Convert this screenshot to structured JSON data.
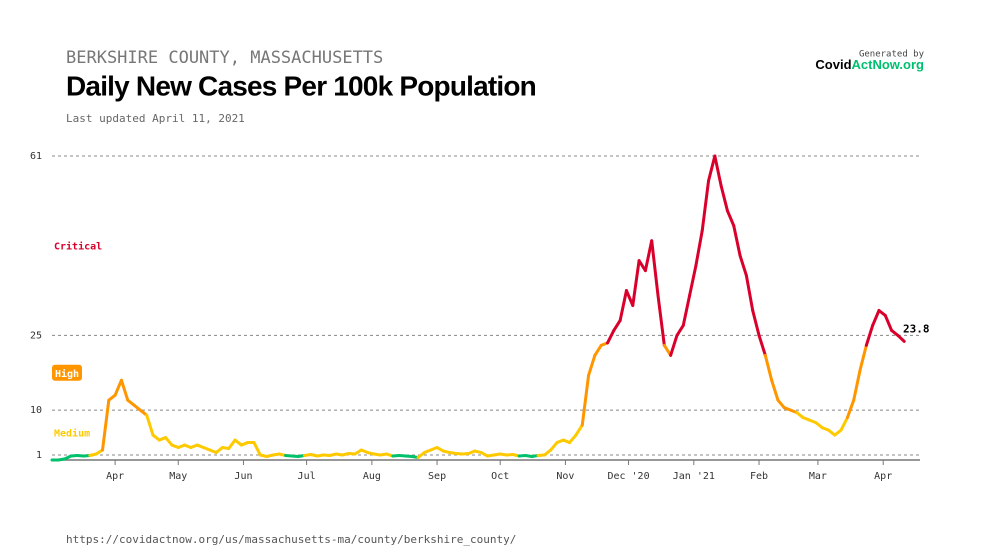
{
  "chart_data": {
    "type": "line",
    "region": "BERKSHIRE COUNTY, MASSACHUSETTS",
    "title": "Daily New Cases Per 100k Population",
    "subtitle": "Last updated April 11, 2021",
    "credit": {
      "prefix": "Generated by",
      "brand": [
        "Covid",
        "ActNow.org"
      ],
      "brand_colors": [
        "#000000",
        "#00bf6f"
      ]
    },
    "source": "https://covidactnow.org/us/massachusetts-ma/county/berkshire_county/",
    "values": [
      0,
      0,
      0.2,
      0.8,
      0.9,
      0.8,
      0.9,
      1.2,
      2,
      12,
      13,
      16,
      12,
      11,
      10,
      9,
      5,
      4,
      4.5,
      3,
      2.5,
      3,
      2.5,
      3,
      2.5,
      2,
      1.5,
      2.5,
      2.3,
      4,
      3,
      3.5,
      3.5,
      1,
      0.7,
      1,
      1.2,
      0.9,
      0.8,
      0.7,
      0.9,
      1.1,
      0.8,
      1,
      0.9,
      1.2,
      1,
      1.3,
      1.2,
      2,
      1.5,
      1.2,
      1,
      1.2,
      0.8,
      0.9,
      0.8,
      0.7,
      0.5,
      1.5,
      2,
      2.5,
      1.8,
      1.5,
      1.3,
      1.2,
      1.3,
      1.8,
      1.5,
      0.8,
      1,
      1.2,
      1,
      1.1,
      0.8,
      0.9,
      0.7,
      0.9,
      1,
      2,
      3.5,
      4,
      3.5,
      5,
      7,
      17,
      21,
      23,
      23.5,
      26,
      28,
      34,
      31,
      40,
      38,
      44,
      33,
      23,
      21,
      25,
      27,
      33,
      39,
      46,
      56,
      61,
      55,
      50,
      47,
      41,
      37,
      30,
      25,
      21,
      16,
      12,
      10.5,
      10,
      9.5,
      8.5,
      8,
      7.5,
      6.5,
      6,
      5,
      6,
      8.5,
      12,
      18,
      23,
      27,
      30,
      29,
      26,
      25,
      23.8
    ],
    "levels": [
      {
        "name": "Critical",
        "color": "#d9002c",
        "min": 25
      },
      {
        "name": "High",
        "color": "#ff9600",
        "min": 10
      },
      {
        "name": "Medium",
        "color": "#ffc900",
        "min": 1
      }
    ],
    "low_color": "#00c16b",
    "xlim": [
      0,
      137.5
    ],
    "xticks": [
      {
        "value": 10,
        "label": "Apr"
      },
      {
        "value": 20,
        "label": "May"
      },
      {
        "value": 30.33,
        "label": "Jun"
      },
      {
        "value": 40.33,
        "label": "Jul"
      },
      {
        "value": 50.67,
        "label": "Aug"
      },
      {
        "value": 61,
        "label": "Sep"
      },
      {
        "value": 71,
        "label": "Oct"
      },
      {
        "value": 81.33,
        "label": "Nov"
      },
      {
        "value": 91.33,
        "label": "Dec '20"
      },
      {
        "value": 101.67,
        "label": "Jan '21"
      },
      {
        "value": 112,
        "label": "Feb"
      },
      {
        "value": 121.33,
        "label": "Mar"
      },
      {
        "value": 131.67,
        "label": "Apr"
      }
    ],
    "ylim": [
      0,
      61
    ],
    "yticks": [
      1,
      10,
      25,
      61
    ],
    "grid": true
  }
}
